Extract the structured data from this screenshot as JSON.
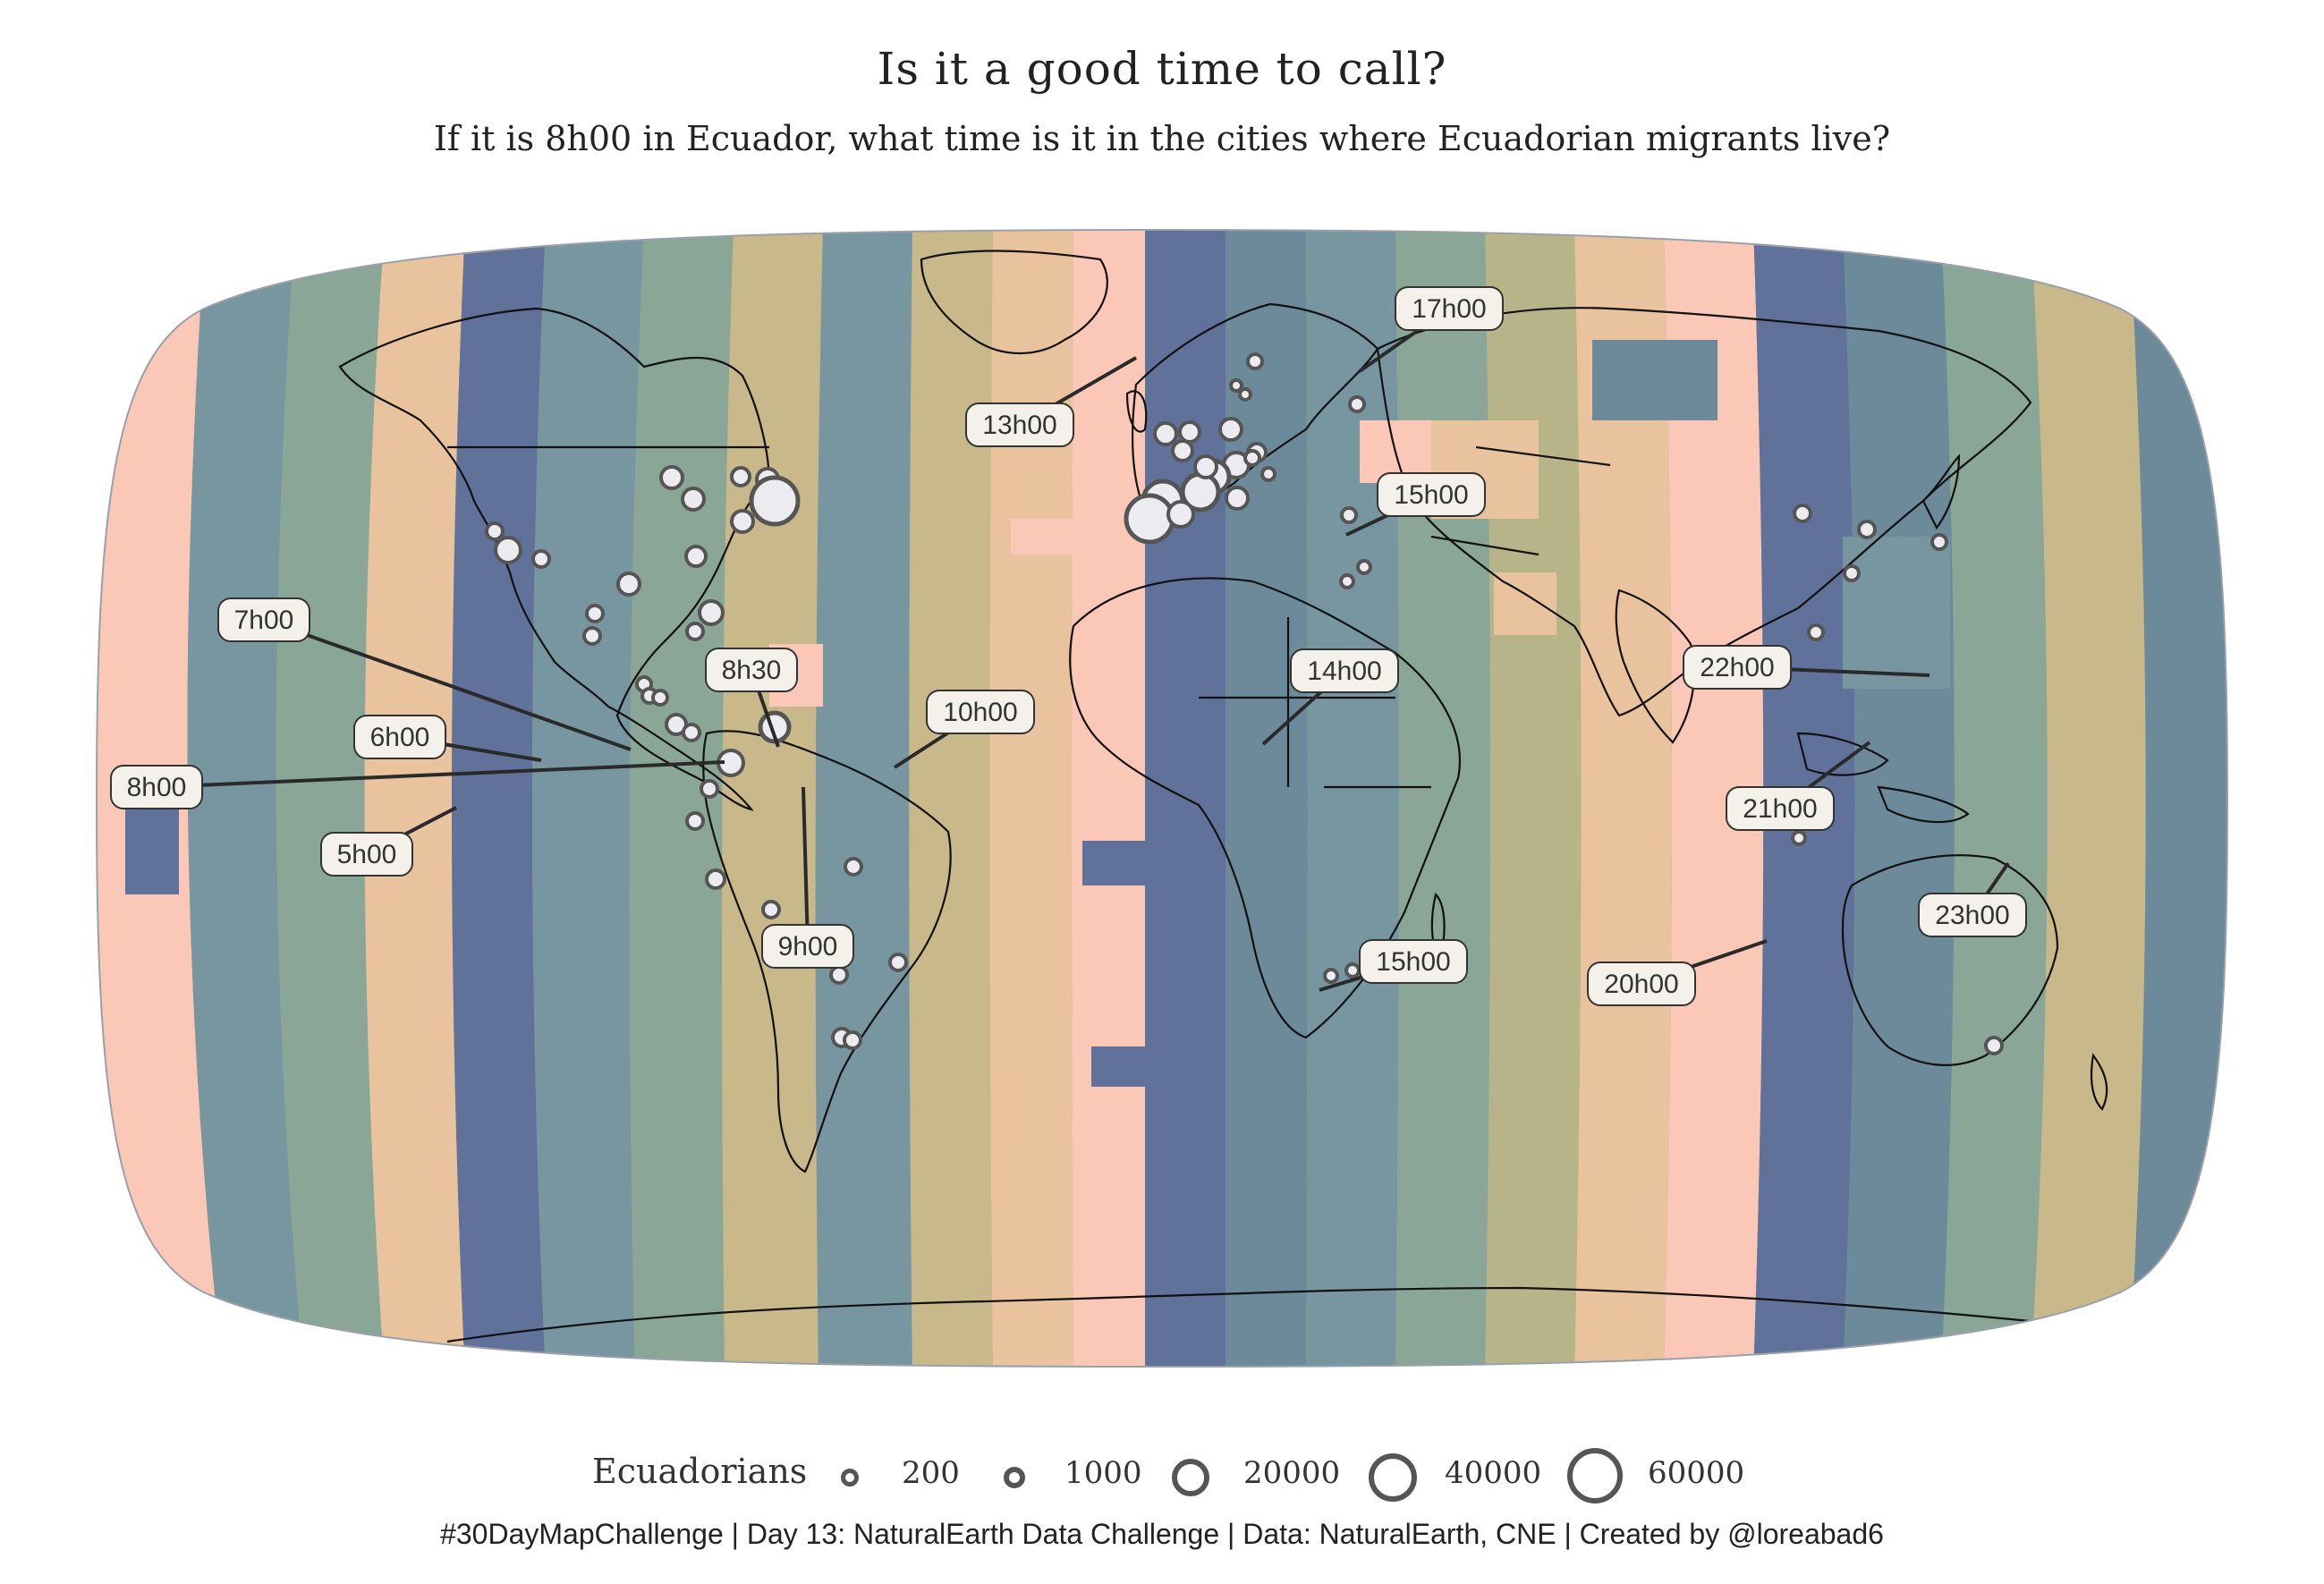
{
  "title": "Is it a good time to call?",
  "subtitle": "If it is 8h00 in Ecuador, what time is it in the cities where Ecuadorian migrants live?",
  "colors": {
    "background": "#ffffff",
    "band_colors": [
      "#fbc8b8",
      "#61729a",
      "#7796a0",
      "#8aa696",
      "#b8b48a",
      "#e9c39e",
      "#c9b98a",
      "#6c8a9a"
    ],
    "coast": "#111111",
    "city_fill": "#ececf0",
    "city_stroke": "#555555",
    "label_bg": "#f4f1ea",
    "leader": "#2a2a2a"
  },
  "time_labels": [
    {
      "text": "17h00"
    },
    {
      "text": "13h00"
    },
    {
      "text": "15h00"
    },
    {
      "text": "7h00"
    },
    {
      "text": "8h30"
    },
    {
      "text": "10h00"
    },
    {
      "text": "14h00"
    },
    {
      "text": "22h00"
    },
    {
      "text": "6h00"
    },
    {
      "text": "8h00"
    },
    {
      "text": "21h00"
    },
    {
      "text": "5h00"
    },
    {
      "text": "9h00"
    },
    {
      "text": "23h00"
    },
    {
      "text": "15h00"
    },
    {
      "text": "20h00"
    }
  ],
  "legend": {
    "title": "Ecuadorians",
    "items": [
      {
        "label": "200",
        "value": 200
      },
      {
        "label": "1000",
        "value": 1000
      },
      {
        "label": "20000",
        "value": 20000
      },
      {
        "label": "40000",
        "value": 40000
      },
      {
        "label": "60000",
        "value": 60000
      }
    ]
  },
  "caption": "#30DayMapChallenge | Day 13: NaturalEarth Data Challenge | Data: NaturalEarth, CNE | Created by @loreabad6"
}
